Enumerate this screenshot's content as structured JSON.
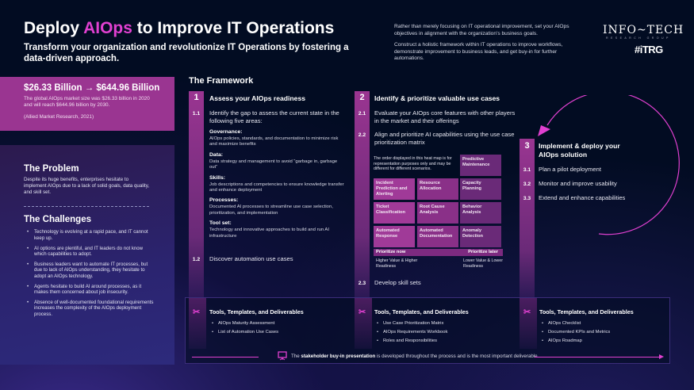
{
  "header": {
    "title_pre": "Deploy ",
    "title_accent": "AIOps",
    "title_post": " to Improve IT Operations",
    "subtitle": "Transform your organization and revolutionize IT Operations by fostering a data-driven approach.",
    "intro": [
      "Rather than merely focusing on IT operational improvement, set your AIOps objectives in alignment with the organization’s business goals.",
      "Construct a holistic framework within IT operations to improve workflows, demonstrate improvement to business leads, and get buy-in for further automations."
    ],
    "logo": "INFO~TECH",
    "logo_sub": "RESEARCH GROUP",
    "logo2": "#iTRG"
  },
  "stat": {
    "headline": "$26.33 Billion → $644.96 Billion",
    "text": "The global AIOps market size was $26.33 billion in 2020 and will reach $644.96 billion by 2030.",
    "source": "(Allied Market Research, 2021)"
  },
  "problem": {
    "title": "The Problem",
    "text": "Despite its huge benefits, enterprises hesitate to implement AIOps due to a lack of solid goals, data quality, and skill set."
  },
  "challenges": {
    "title": "The Challenges",
    "items": [
      "Technology is evolving at a rapid pace, and IT cannot keep up.",
      "AI options are plentiful, and IT leaders do not know which capabilities to adopt.",
      "Business leaders want to automate IT processes, but due to lack of AIOps understanding, they hesitate to adopt an AIOps technology.",
      "Agents hesitate to build AI around processes, as it makes them concerned about job insecurity.",
      "Absence of well-documented foundational requirements increases the complexity of the AIOps deployment process."
    ]
  },
  "framework": {
    "title": "The Framework",
    "phase1": {
      "num": "1",
      "title": "Assess your AIOps readiness",
      "s1_num": "1.1",
      "s1": "Identify the gap to assess the current state in the following five areas:",
      "areas": [
        {
          "h": "Governance:",
          "t": "AIOps policies, standards, and documentation to minimize risk and maximize benefits"
        },
        {
          "h": "Data:",
          "t": "Data strategy and management to avoid “garbage in, garbage out”"
        },
        {
          "h": "Skills:",
          "t": "Job descriptions and competencies to ensure knowledge transfer and enhance deployment"
        },
        {
          "h": "Processes:",
          "t": "Documented AI processes to streamline use case selection, prioritization, and implementation"
        },
        {
          "h": "Tool set:",
          "t": "Technology and innovative approaches to build and run AI infrastructure"
        }
      ],
      "s2_num": "1.2",
      "s2": "Discover automation use cases"
    },
    "phase2": {
      "num": "2",
      "title": "Identify & prioritize valuable use cases",
      "s1_num": "2.1",
      "s1": "Evaluate your AIOps core features with other players in the market and their offerings",
      "s2_num": "2.2",
      "s2": "Align and prioritize AI capabilities using the use case prioritization matrix",
      "s3_num": "2.3",
      "s3": "Develop skill sets",
      "heatmap": {
        "note": "The order displayed in this heat map is for representation purposes only and may be different for different scenarios.",
        "cells": [
          "Predictive Maintenance",
          "Incident Prediction and Alerting",
          "Resource Allocation",
          "Capacity Planning",
          "Ticket Classification",
          "Root Cause Analysis",
          "Behavior Analysis",
          "Automated Response",
          "Automated Documentation",
          "Anomaly Detection"
        ],
        "prioritize_now": "Prioritize now",
        "prioritize_later": "Prioritize later",
        "left_label": "Higher Value & Higher Readiness",
        "right_label": "Lower Value & Lower Readiness",
        "colors": {
          "high": "#a03a98",
          "mid": "#7e2b80",
          "low": "#5c2468"
        }
      }
    },
    "phase3": {
      "num": "3",
      "title": "Implement & deploy your AIOps solution",
      "steps": [
        {
          "num": "3.1",
          "t": "Plan a pilot deployment"
        },
        {
          "num": "3.2",
          "t": "Monitor and improve usability"
        },
        {
          "num": "3.3",
          "t": "Extend and enhance capabilities"
        }
      ]
    }
  },
  "tools": {
    "title": "Tools, Templates, and Deliverables",
    "col1": [
      "AIOps Maturity Assessment",
      "List of Automation Use Cases"
    ],
    "col2": [
      "Use Case Prioritization Matrix",
      "AIOps Requirements Workbook",
      "Roles and Responsibilities"
    ],
    "col3": [
      "AIOps Checklist",
      "Documented KPIs and Metrics",
      "AIOps Roadmap"
    ],
    "footer_pre": "The ",
    "footer_bold": "stakeholder buy-in presentation",
    "footer_post": " is developed throughout the process and is the most important deliverable."
  },
  "colors": {
    "accent": "#e040d0",
    "magenta": "#9a3591",
    "background": "#020c22"
  }
}
